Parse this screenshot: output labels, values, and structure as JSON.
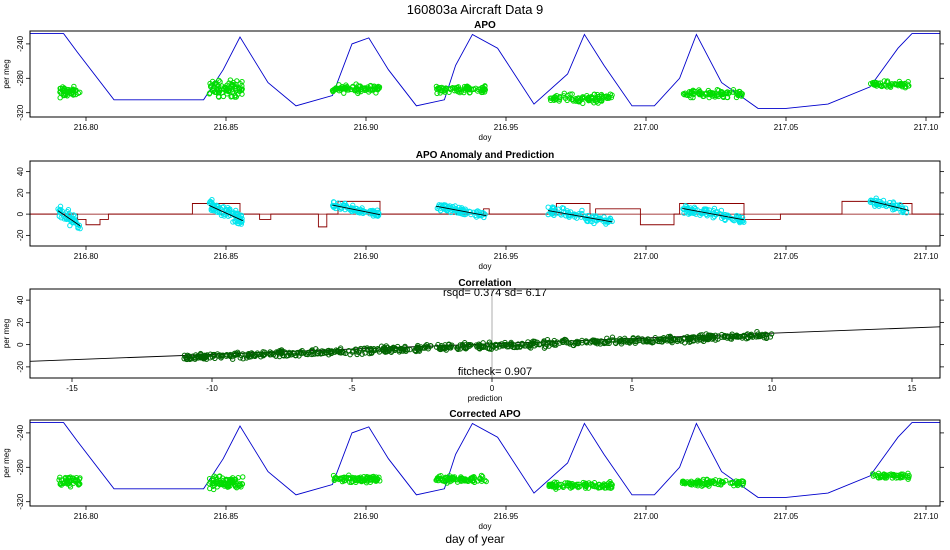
{
  "page": {
    "title": "160803a    Aircraft Data 9",
    "footer_xlabel": "day of year"
  },
  "colors": {
    "observed_points": "#00dd00",
    "model_line": "#0000cc",
    "anomaly_points": "#00e5ee",
    "prediction_line": "#8b0000",
    "correlation_points": "#006400",
    "smooth_line": "#000000"
  },
  "chart_data": [
    {
      "type": "scatter",
      "title": "APO",
      "xlabel": "doy",
      "ylabel": "per meg",
      "xlim": [
        216.78,
        217.105
      ],
      "ylim": [
        -325,
        -225
      ],
      "xticks": [
        216.8,
        216.85,
        216.9,
        216.95,
        217.0,
        217.05,
        217.1
      ],
      "xtick_labels": [
        "216.80",
        "216.85",
        "216.90",
        "216.95",
        "217.00",
        "217.05",
        "217.10"
      ],
      "yticks": [
        -240,
        -280,
        -320
      ],
      "ytick_labels": [
        "-240",
        "-280",
        "-320"
      ],
      "series": [
        {
          "kind": "line",
          "x": [
            216.78,
            216.792,
            216.797,
            216.81,
            216.842,
            216.849,
            216.855,
            216.865,
            216.875,
            216.888,
            216.895,
            216.901,
            216.908,
            216.918,
            216.928,
            216.932,
            216.938,
            216.947,
            216.96,
            216.972,
            216.978,
            216.985,
            216.995,
            217.003,
            217.012,
            217.018,
            217.027,
            217.04,
            217.05,
            217.065,
            217.08,
            217.09,
            217.095,
            217.105
          ],
          "y": [
            -228,
            -228,
            -250,
            -305,
            -305,
            -270,
            -232,
            -285,
            -312,
            -300,
            -240,
            -233,
            -270,
            -312,
            -305,
            -265,
            -229,
            -245,
            -310,
            -275,
            -229,
            -265,
            -312,
            -312,
            -280,
            -229,
            -285,
            -315,
            -315,
            -310,
            -290,
            -245,
            -228,
            -228
          ]
        },
        {
          "kind": "points",
          "clusters": [
            {
              "x0": 216.79,
              "x1": 216.798,
              "y": -296,
              "spread": 16,
              "n": 45
            },
            {
              "x0": 216.844,
              "x1": 216.856,
              "y": -292,
              "spread": 26,
              "n": 80
            },
            {
              "x0": 216.888,
              "x1": 216.905,
              "y": -292,
              "spread": 12,
              "n": 80
            },
            {
              "x0": 216.925,
              "x1": 216.943,
              "y": -293,
              "spread": 12,
              "n": 80
            },
            {
              "x0": 216.965,
              "x1": 216.988,
              "y": -303,
              "spread": 13,
              "n": 90
            },
            {
              "x0": 217.013,
              "x1": 217.035,
              "y": -298,
              "spread": 11,
              "n": 90
            },
            {
              "x0": 217.08,
              "x1": 217.094,
              "y": -287,
              "spread": 10,
              "n": 55
            }
          ]
        }
      ]
    },
    {
      "type": "scatter",
      "title": "APO Anomaly and Prediction",
      "xlabel": "doy",
      "ylabel": "",
      "xlim": [
        216.78,
        217.105
      ],
      "ylim": [
        -30,
        50
      ],
      "xticks": [
        216.8,
        216.85,
        216.9,
        216.95,
        217.0,
        217.05,
        217.1
      ],
      "xtick_labels": [
        "216.80",
        "216.85",
        "216.90",
        "216.95",
        "217.00",
        "217.05",
        "217.10"
      ],
      "yticks": [
        40,
        20,
        0,
        -20
      ],
      "ytick_labels": [
        "40",
        "20",
        "0",
        "-20"
      ],
      "series": [
        {
          "kind": "line",
          "x": [
            216.78,
            216.795,
            216.797,
            216.8,
            216.805,
            216.808,
            216.836,
            216.838,
            216.855,
            216.862,
            216.866,
            216.88,
            216.883,
            216.886,
            216.89,
            216.905,
            216.907,
            216.925,
            216.942,
            216.944,
            216.966,
            216.968,
            216.98,
            216.982,
            216.998,
            217.01,
            217.012,
            217.035,
            217.048,
            217.06,
            217.07,
            217.082,
            217.095,
            217.1,
            217.105
          ],
          "y": [
            0,
            0,
            -5,
            -10,
            -5,
            0,
            0,
            10,
            0,
            -5,
            0,
            0,
            -12,
            0,
            12,
            0,
            0,
            0,
            5,
            0,
            0,
            10,
            0,
            5,
            -10,
            0,
            10,
            -5,
            0,
            0,
            12,
            10,
            0,
            0,
            0
          ]
        },
        {
          "kind": "points",
          "clusters": [
            {
              "x0": 216.79,
              "x1": 216.798,
              "y": -4,
              "spread": 16,
              "n": 45
            },
            {
              "x0": 216.844,
              "x1": 216.856,
              "y": 1,
              "spread": 16,
              "n": 80
            },
            {
              "x0": 216.888,
              "x1": 216.905,
              "y": 4,
              "spread": 10,
              "n": 80
            },
            {
              "x0": 216.925,
              "x1": 216.943,
              "y": 3,
              "spread": 10,
              "n": 80
            },
            {
              "x0": 216.965,
              "x1": 216.988,
              "y": -2,
              "spread": 12,
              "n": 90
            },
            {
              "x0": 217.013,
              "x1": 217.035,
              "y": 0,
              "spread": 12,
              "n": 90
            },
            {
              "x0": 217.08,
              "x1": 217.094,
              "y": 8,
              "spread": 10,
              "n": 55
            }
          ]
        }
      ]
    },
    {
      "type": "scatter",
      "title": "Correlation",
      "annotation_top": "rsqd= 0.374 sd= 6.17",
      "annotation_bottom": "fitcheck= 0.907",
      "xlabel": "prediction",
      "ylabel": "per meg",
      "xlim": [
        -16.5,
        16
      ],
      "ylim": [
        -30,
        50
      ],
      "xticks": [
        -15,
        -10,
        -5,
        0,
        5,
        10,
        15
      ],
      "xtick_labels": [
        "-15",
        "-10",
        "-5",
        "0",
        "5",
        "10",
        "15"
      ],
      "yticks": [
        40,
        20,
        0,
        -20
      ],
      "ytick_labels": [
        "40",
        "20",
        "0",
        "-20"
      ],
      "series": [
        {
          "kind": "line",
          "x": [
            -16.5,
            16
          ],
          "y": [
            -15,
            16
          ]
        },
        {
          "kind": "points",
          "x0": -11,
          "x1": 10,
          "slope": 0.95,
          "intercept": -1,
          "spread": 9,
          "n": 700
        }
      ]
    },
    {
      "type": "scatter",
      "title": "Corrected APO",
      "xlabel": "doy",
      "ylabel": "per meg",
      "xlim": [
        216.78,
        217.105
      ],
      "ylim": [
        -325,
        -225
      ],
      "xticks": [
        216.8,
        216.85,
        216.9,
        216.95,
        217.0,
        217.05,
        217.1
      ],
      "xtick_labels": [
        "216.80",
        "216.85",
        "216.90",
        "216.95",
        "217.00",
        "217.05",
        "217.10"
      ],
      "yticks": [
        -240,
        -280,
        -320
      ],
      "ytick_labels": [
        "-240",
        "-280",
        "-320"
      ],
      "series": [
        {
          "kind": "line",
          "x": [
            216.78,
            216.792,
            216.797,
            216.81,
            216.842,
            216.849,
            216.855,
            216.865,
            216.875,
            216.888,
            216.895,
            216.901,
            216.908,
            216.918,
            216.928,
            216.932,
            216.938,
            216.947,
            216.96,
            216.972,
            216.978,
            216.985,
            216.995,
            217.003,
            217.012,
            217.018,
            217.027,
            217.04,
            217.05,
            217.065,
            217.08,
            217.09,
            217.095,
            217.105
          ],
          "y": [
            -228,
            -228,
            -250,
            -305,
            -305,
            -270,
            -232,
            -285,
            -312,
            -300,
            -240,
            -233,
            -270,
            -312,
            -305,
            -265,
            -229,
            -245,
            -310,
            -275,
            -229,
            -265,
            -312,
            -312,
            -280,
            -229,
            -285,
            -315,
            -315,
            -310,
            -290,
            -245,
            -228,
            -228
          ]
        },
        {
          "kind": "points",
          "clusters": [
            {
              "x0": 216.79,
              "x1": 216.798,
              "y": -296,
              "spread": 16,
              "n": 45
            },
            {
              "x0": 216.844,
              "x1": 216.856,
              "y": -298,
              "spread": 20,
              "n": 80
            },
            {
              "x0": 216.888,
              "x1": 216.905,
              "y": -294,
              "spread": 10,
              "n": 80
            },
            {
              "x0": 216.925,
              "x1": 216.943,
              "y": -294,
              "spread": 10,
              "n": 80
            },
            {
              "x0": 216.965,
              "x1": 216.988,
              "y": -301,
              "spread": 10,
              "n": 90
            },
            {
              "x0": 217.013,
              "x1": 217.035,
              "y": -298,
              "spread": 10,
              "n": 90
            },
            {
              "x0": 217.08,
              "x1": 217.094,
              "y": -290,
              "spread": 10,
              "n": 55
            }
          ]
        }
      ]
    }
  ]
}
